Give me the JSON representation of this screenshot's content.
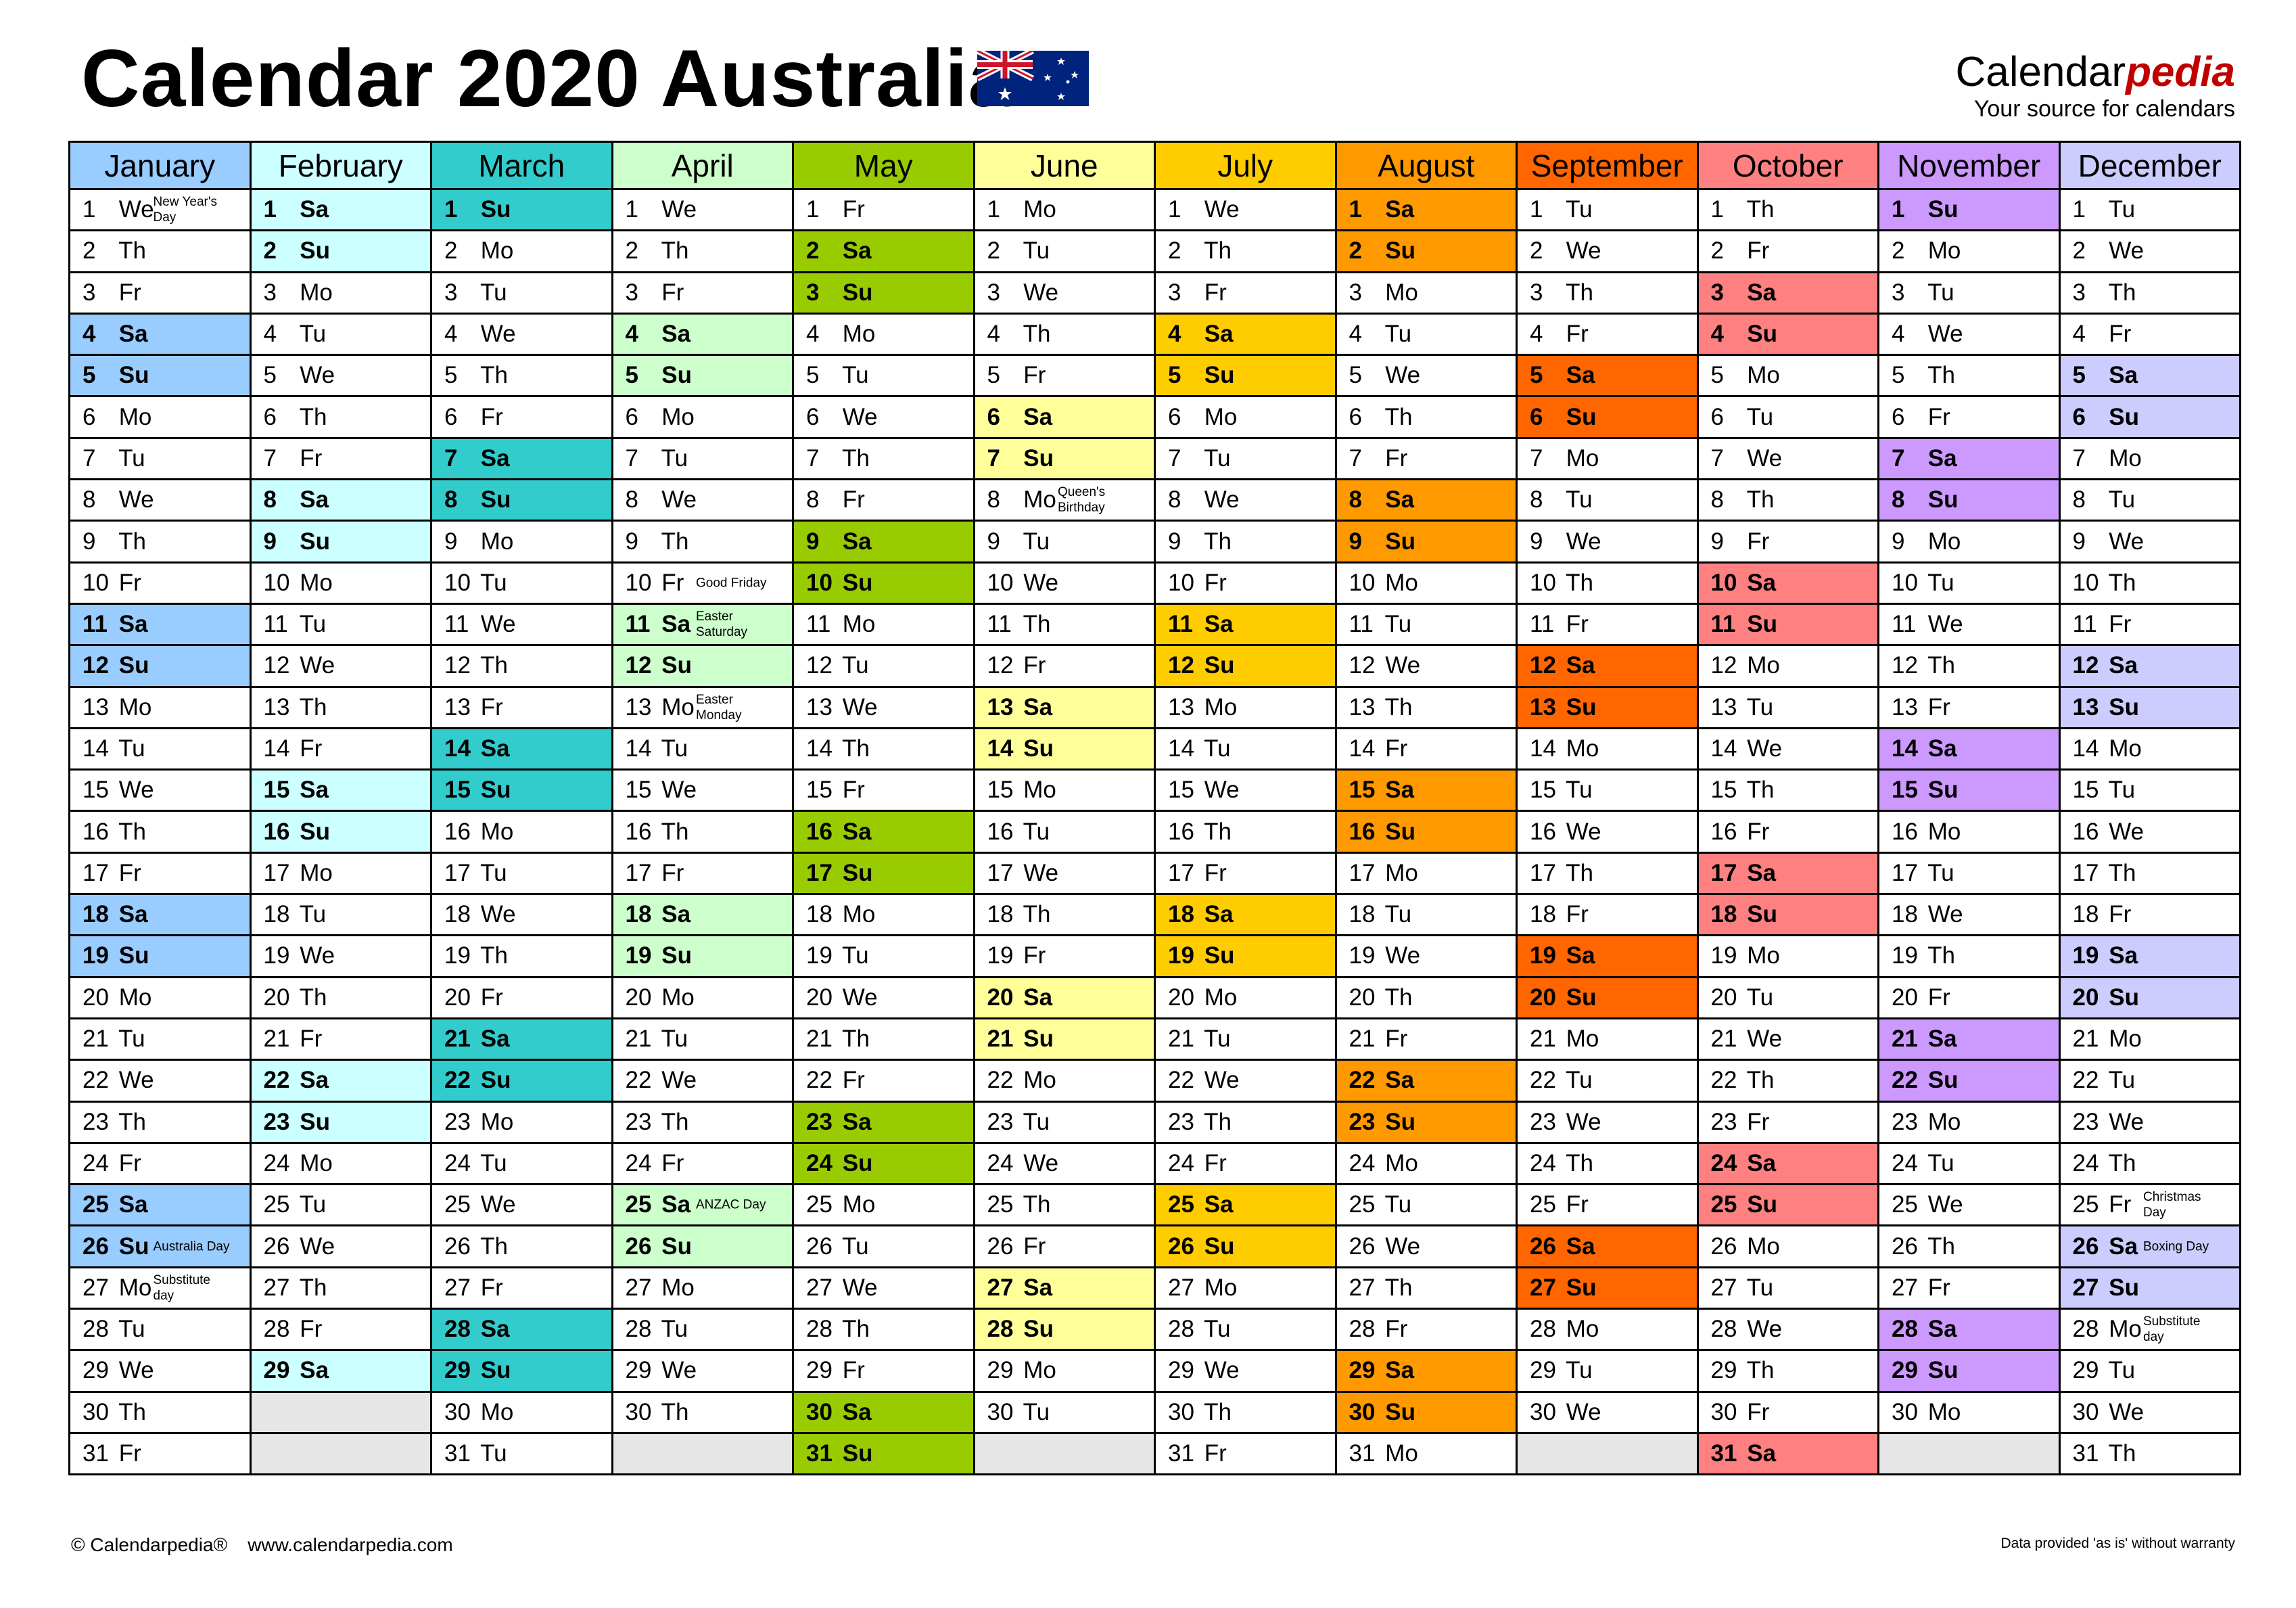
{
  "title": "Calendar 2020 Australia",
  "brand": {
    "name_main": "Calendar",
    "name_accent": "pedia",
    "tagline": "Your source for calendars"
  },
  "footer": {
    "copyright": "© Calendarpedia®",
    "url": "www.calendarpedia.com",
    "disclaimer": "Data provided 'as is' without warranty"
  },
  "colors": {
    "flag_blue": "#00247d",
    "flag_red": "#cf142b",
    "empty_cell": "#e6e6e6",
    "brand_accent": "#c00000"
  },
  "months": [
    {
      "name": "January",
      "first_dow": 2,
      "days": 31,
      "header_color": "#99ccff",
      "weekend_color": "#99ccff"
    },
    {
      "name": "February",
      "first_dow": 5,
      "days": 29,
      "header_color": "#ccffff",
      "weekend_color": "#ccffff"
    },
    {
      "name": "March",
      "first_dow": 6,
      "days": 31,
      "header_color": "#33cccc",
      "weekend_color": "#33cccc"
    },
    {
      "name": "April",
      "first_dow": 2,
      "days": 30,
      "header_color": "#ccffcc",
      "weekend_color": "#ccffcc"
    },
    {
      "name": "May",
      "first_dow": 4,
      "days": 31,
      "header_color": "#99cc00",
      "weekend_color": "#99cc00"
    },
    {
      "name": "June",
      "first_dow": 0,
      "days": 30,
      "header_color": "#ffff99",
      "weekend_color": "#ffff99"
    },
    {
      "name": "July",
      "first_dow": 2,
      "days": 31,
      "header_color": "#ffcc00",
      "weekend_color": "#ffcc00"
    },
    {
      "name": "August",
      "first_dow": 5,
      "days": 31,
      "header_color": "#ff9900",
      "weekend_color": "#ff9900"
    },
    {
      "name": "September",
      "first_dow": 1,
      "days": 30,
      "header_color": "#ff6600",
      "weekend_color": "#ff6600"
    },
    {
      "name": "October",
      "first_dow": 3,
      "days": 31,
      "header_color": "#ff8080",
      "weekend_color": "#ff8080"
    },
    {
      "name": "November",
      "first_dow": 6,
      "days": 30,
      "header_color": "#cc99ff",
      "weekend_color": "#cc99ff"
    },
    {
      "name": "December",
      "first_dow": 1,
      "days": 31,
      "header_color": "#ccccff",
      "weekend_color": "#ccccff"
    }
  ],
  "weekday_abbr": [
    "Mo",
    "Tu",
    "We",
    "Th",
    "Fr",
    "Sa",
    "Su"
  ],
  "holidays": [
    {
      "month": 0,
      "day": 1,
      "name": "New Year's Day"
    },
    {
      "month": 0,
      "day": 26,
      "name": "Australia Day"
    },
    {
      "month": 0,
      "day": 27,
      "name": "Substitute day"
    },
    {
      "month": 3,
      "day": 10,
      "name": "Good Friday"
    },
    {
      "month": 3,
      "day": 11,
      "name": "Easter Saturday"
    },
    {
      "month": 3,
      "day": 13,
      "name": "Easter Monday"
    },
    {
      "month": 3,
      "day": 25,
      "name": "ANZAC Day"
    },
    {
      "month": 5,
      "day": 8,
      "name": "Queen's Birthday"
    },
    {
      "month": 11,
      "day": 25,
      "name": "Christmas Day"
    },
    {
      "month": 11,
      "day": 26,
      "name": "Boxing Day"
    },
    {
      "month": 11,
      "day": 28,
      "name": "Substitute day"
    }
  ]
}
